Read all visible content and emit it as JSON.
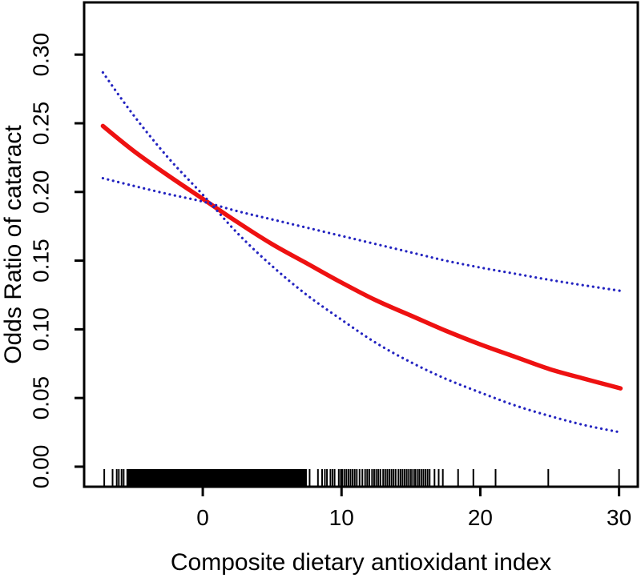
{
  "figure": {
    "background": "#ffffff",
    "axis_color": "#000000"
  },
  "chart_data": {
    "type": "line",
    "title": "",
    "xlabel": "Composite dietary antioxidant index",
    "ylabel": "Odds Ratio of cataract",
    "xlim": [
      -8.55,
      31.35
    ],
    "ylim": [
      -0.0146,
      0.338
    ],
    "grid": "off",
    "legend": "none",
    "xticks": [
      {
        "value": 0,
        "label": "0"
      },
      {
        "value": 10,
        "label": "10"
      },
      {
        "value": 20,
        "label": "20"
      },
      {
        "value": 30,
        "label": "30"
      }
    ],
    "yticks": [
      {
        "value": 0.0,
        "label": "0.00"
      },
      {
        "value": 0.05,
        "label": "0.05"
      },
      {
        "value": 0.1,
        "label": "0.10"
      },
      {
        "value": 0.15,
        "label": "0.15"
      },
      {
        "value": 0.2,
        "label": "0.20"
      },
      {
        "value": 0.25,
        "label": "0.25"
      },
      {
        "value": 0.3,
        "label": "0.30"
      }
    ],
    "series": [
      {
        "name": "odds-ratio-estimate",
        "color": "#ee1111",
        "style": "solid",
        "width": 5.5,
        "x": [
          -7.2,
          -5,
          -2.5,
          0,
          2.5,
          5,
          7.5,
          10,
          12.5,
          15,
          17.5,
          20,
          22.5,
          25,
          27.5,
          30.1
        ],
        "y": [
          0.248,
          0.23,
          0.212,
          0.195,
          0.178,
          0.162,
          0.148,
          0.134,
          0.121,
          0.11,
          0.099,
          0.089,
          0.08,
          0.071,
          0.064,
          0.057
        ]
      },
      {
        "name": "confidence-band-steep",
        "color": "#2323c0",
        "style": "dotted",
        "width": 3.2,
        "x": [
          -7.2,
          -5,
          -2.5,
          0,
          2.5,
          5,
          7.5,
          10,
          12.5,
          15,
          17.5,
          20,
          22.5,
          25,
          27.5,
          30.1
        ],
        "y": [
          0.287,
          0.256,
          0.225,
          0.198,
          0.17,
          0.146,
          0.125,
          0.107,
          0.09,
          0.076,
          0.064,
          0.054,
          0.0446,
          0.0369,
          0.0303,
          0.025
        ]
      },
      {
        "name": "confidence-band-shallow",
        "color": "#2323c0",
        "style": "dotted",
        "width": 3.2,
        "x": [
          -7.2,
          -5,
          -2.5,
          0,
          2.5,
          5,
          7.5,
          10,
          12.5,
          15,
          17.5,
          20,
          22.5,
          25,
          27.5,
          30.1
        ],
        "y": [
          0.21,
          0.2045,
          0.1985,
          0.193,
          0.186,
          0.18,
          0.174,
          0.168,
          0.162,
          0.156,
          0.15,
          0.145,
          0.1405,
          0.136,
          0.132,
          0.128
        ]
      }
    ],
    "rug": {
      "color": "#000000",
      "dense_interval": [
        -5.5,
        7.5
      ],
      "ticks": [
        -7.1,
        -6.5,
        -6.2,
        -6.05,
        -5.85,
        -5.7,
        7.7,
        8.3,
        8.6,
        8.8,
        8.95,
        9.2,
        9.35,
        9.5,
        9.8,
        9.95,
        10.05,
        10.2,
        10.35,
        10.5,
        10.65,
        10.8,
        10.95,
        11.1,
        11.3,
        11.5,
        11.7,
        11.85,
        12.0,
        12.2,
        12.35,
        12.5,
        12.65,
        12.8,
        13.0,
        13.15,
        13.3,
        13.45,
        13.6,
        13.75,
        13.9,
        14.1,
        14.25,
        14.4,
        14.55,
        14.7,
        14.85,
        15.0,
        15.15,
        15.3,
        15.45,
        15.6,
        15.75,
        15.9,
        16.05,
        16.2,
        16.35,
        16.7,
        17.0,
        17.3,
        18.4,
        19.5,
        21.1,
        24.9,
        30.0
      ]
    }
  }
}
